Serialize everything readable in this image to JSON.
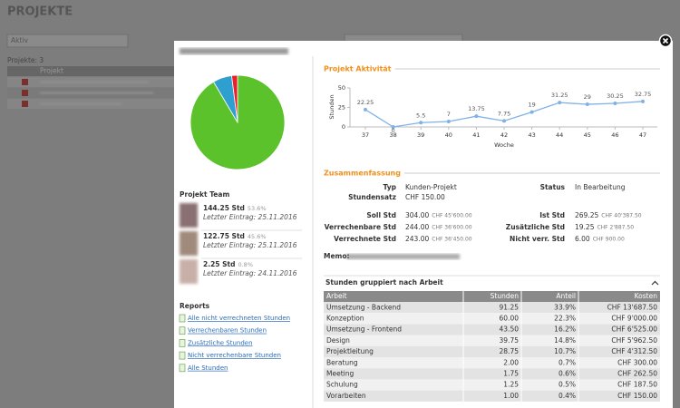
{
  "page": {
    "title": "PROJEKTE",
    "filter": "Aktiv",
    "count_label": "Projekte: 3",
    "column": "Projekt"
  },
  "modal": {
    "pie": {
      "type": "pie",
      "values": [
        91.5,
        6.5,
        2
      ],
      "colors": [
        "#5cc22b",
        "#2f9fd0",
        "#e8202a"
      ]
    },
    "team": {
      "title": "Projekt Team",
      "members": [
        {
          "hours": "144.25 Std",
          "pct": "53.6%",
          "last": "Letzter Eintrag: 25.11.2016"
        },
        {
          "hours": "122.75 Std",
          "pct": "45.6%",
          "last": "Letzter Eintrag: 25.11.2016"
        },
        {
          "hours": "2.25 Std",
          "pct": "0.8%",
          "last": "Letzter Eintrag: 24.11.2016"
        }
      ]
    },
    "reports": {
      "title": "Reports",
      "links": [
        "Alle nicht verrechneten Stunden",
        "Verrechenbaren Stunden",
        "Zusätzliche Stunden",
        "Nicht verrechenbare Stunden",
        "Alle Stunden"
      ]
    },
    "activity": {
      "type": "line",
      "title": "Projekt Aktivität",
      "y_label": "Stunden",
      "x_label": "Woche",
      "categories": [
        "37",
        "38",
        "39",
        "40",
        "41",
        "42",
        "43",
        "44",
        "45",
        "46",
        "47"
      ],
      "values": [
        22.25,
        0,
        5.5,
        7,
        13.75,
        7.75,
        19,
        31.25,
        29,
        30.25,
        32.75
      ],
      "color": "#7fb2e5",
      "ylim": [
        0,
        50
      ],
      "yticks": [
        0,
        25,
        50
      ]
    },
    "summary": {
      "title": "Zusammenfassung",
      "left": [
        {
          "label": "Typ",
          "value": "Kunden-Projekt"
        },
        {
          "label": "Stundensatz",
          "value": "CHF 150.00"
        }
      ],
      "right": [
        {
          "label": "Status",
          "value": "In Bearbeitung"
        }
      ],
      "hours_left": [
        {
          "label": "Soll Std",
          "value": "304.00",
          "money": "CHF 45'600.00"
        },
        {
          "label": "Verrechenbare Std",
          "value": "244.00",
          "money": "CHF 36'600.00"
        },
        {
          "label": "Verrechnete Std",
          "value": "243.00",
          "money": "CHF 36'450.00"
        }
      ],
      "hours_right": [
        {
          "label": "Ist Std",
          "value": "269.25",
          "money": "CHF 40'387.50"
        },
        {
          "label": "Zusätzliche Std",
          "value": "19.25",
          "money": "CHF 2'887.50"
        },
        {
          "label": "Nicht verr. Std",
          "value": "6.00",
          "money": "CHF 900.00"
        }
      ],
      "memo": "Memo:"
    },
    "table": {
      "title": "Stunden gruppiert nach Arbeit",
      "headers": [
        "Arbeit",
        "Stunden",
        "Anteil",
        "Kosten"
      ],
      "rows": [
        [
          "Umsetzung - Backend",
          "91.25",
          "33.9%",
          "CHF 13'687.50"
        ],
        [
          "Konzeption",
          "60.00",
          "22.3%",
          "CHF 9'000.00"
        ],
        [
          "Umsetzung - Frontend",
          "43.50",
          "16.2%",
          "CHF 6'525.00"
        ],
        [
          "Design",
          "39.75",
          "14.8%",
          "CHF 5'962.50"
        ],
        [
          "Projektleitung",
          "28.75",
          "10.7%",
          "CHF 4'312.50"
        ],
        [
          "Beratung",
          "2.00",
          "0.7%",
          "CHF 300.00"
        ],
        [
          "Meeting",
          "1.75",
          "0.6%",
          "CHF 262.50"
        ],
        [
          "Schulung",
          "1.25",
          "0.5%",
          "CHF 187.50"
        ],
        [
          "Vorarbeiten",
          "1.00",
          "0.4%",
          "CHF 150.00"
        ]
      ]
    }
  }
}
